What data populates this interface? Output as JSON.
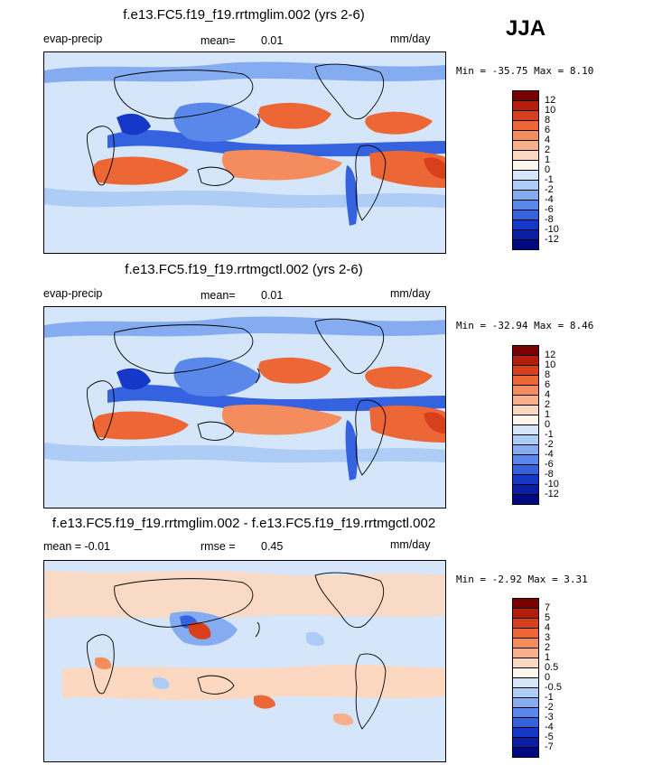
{
  "season": "JJA",
  "panels": [
    {
      "title": "f.e13.FC5.f19_f19.rrtmglim.002 (yrs 2-6)",
      "left_label": "evap-precip",
      "mean_label": "mean=",
      "mean_value": "0.01",
      "units": "mm/day",
      "minmax": "Min = -35.75 Max =   8.10",
      "colorbar": {
        "colors": [
          "#7a0000",
          "#b41e0e",
          "#d8401c",
          "#ec6636",
          "#f48c5e",
          "#f8b08c",
          "#fcd8c0",
          "#fff6ee",
          "#d6e6fa",
          "#aecdf6",
          "#85acf0",
          "#5a88ea",
          "#3562de",
          "#1638c8",
          "#0a1ea6",
          "#000a80"
        ],
        "ticks": [
          "12",
          "10",
          "8",
          "6",
          "4",
          "2",
          "1",
          "0",
          "-1",
          "-2",
          "-4",
          "-6",
          "-8",
          "-10",
          "-12"
        ]
      }
    },
    {
      "title": "f.e13.FC5.f19_f19.rrtmgctl.002 (yrs 2-6)",
      "left_label": "evap-precip",
      "mean_label": "mean=",
      "mean_value": "0.01",
      "units": "mm/day",
      "minmax": "Min = -32.94 Max =   8.46",
      "colorbar": {
        "colors": [
          "#7a0000",
          "#b41e0e",
          "#d8401c",
          "#ec6636",
          "#f48c5e",
          "#f8b08c",
          "#fcd8c0",
          "#fff6ee",
          "#d6e6fa",
          "#aecdf6",
          "#85acf0",
          "#5a88ea",
          "#3562de",
          "#1638c8",
          "#0a1ea6",
          "#000a80"
        ],
        "ticks": [
          "12",
          "10",
          "8",
          "6",
          "4",
          "2",
          "1",
          "0",
          "-1",
          "-2",
          "-4",
          "-6",
          "-8",
          "-10",
          "-12"
        ]
      }
    },
    {
      "title": "f.e13.FC5.f19_f19.rrtmglim.002 - f.e13.FC5.f19_f19.rrtmgctl.002",
      "left_label": "mean =   -0.01",
      "mean_label": "rmse =",
      "mean_value": "0.45",
      "units": "mm/day",
      "minmax": "Min =  -2.92 Max =   3.31",
      "colorbar": {
        "colors": [
          "#7a0000",
          "#b41e0e",
          "#d8401c",
          "#ec6636",
          "#f48c5e",
          "#f8b08c",
          "#fcd8c0",
          "#fff6ee",
          "#d6e6fa",
          "#aecdf6",
          "#85acf0",
          "#5a88ea",
          "#3562de",
          "#1638c8",
          "#0a1ea6",
          "#000a80"
        ],
        "ticks": [
          "7",
          "5",
          "4",
          "3",
          "2",
          "1",
          "0.5",
          "0",
          "-0.5",
          "-1",
          "-2",
          "-3",
          "-4",
          "-5",
          "-7"
        ]
      }
    }
  ]
}
